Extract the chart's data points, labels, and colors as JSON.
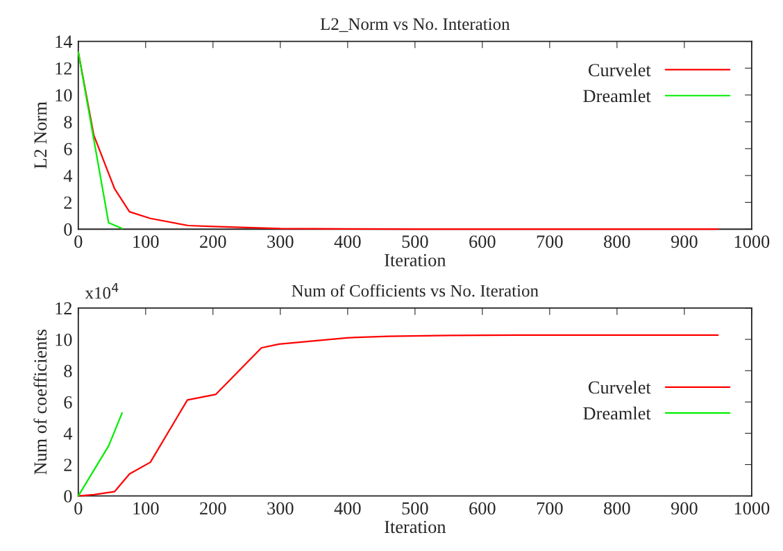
{
  "chart_data": [
    {
      "type": "line",
      "title": "L2_Norm vs No. Interation",
      "xlabel": "Iteration",
      "ylabel": "L2 Norm",
      "xlim": [
        0,
        1000
      ],
      "xticks": [
        0,
        100,
        200,
        300,
        400,
        500,
        600,
        700,
        800,
        900,
        1000
      ],
      "ylim": [
        0,
        14
      ],
      "yticks": [
        0,
        2,
        4,
        6,
        8,
        10,
        12,
        14
      ],
      "grid": false,
      "legend": "top right",
      "series": [
        {
          "name": "Curvelet",
          "color": "#ff0000",
          "x": [
            0,
            23,
            54,
            76,
            107,
            163,
            200,
            300,
            400,
            500,
            600,
            700,
            800,
            950
          ],
          "values": [
            13.2,
            7.0,
            3.0,
            1.3,
            0.8,
            0.27,
            0.2,
            0.05,
            0.02,
            0.01,
            0,
            0,
            0,
            0
          ]
        },
        {
          "name": "Dreamlet",
          "color": "#00ee00",
          "x": [
            0,
            45,
            65
          ],
          "values": [
            13.2,
            0.48,
            0.05
          ]
        }
      ]
    },
    {
      "type": "line",
      "title": "Num of Cofficients vs No. Iteration",
      "xlabel": "Iteration",
      "ylabel": "Num of coefficients",
      "annotations": [
        "x10$^{4}$"
      ],
      "xlim": [
        0,
        1000
      ],
      "xticks": [
        0,
        100,
        200,
        300,
        400,
        500,
        600,
        700,
        800,
        900,
        1000
      ],
      "ylim": [
        0,
        12
      ],
      "yticks": [
        0,
        2,
        4,
        6,
        8,
        10,
        12
      ],
      "grid": false,
      "legend": "right",
      "series": [
        {
          "name": "Curvelet",
          "color": "#ff0000",
          "x": [
            0,
            23,
            54,
            76,
            107,
            162,
            204,
            272,
            298,
            399,
            460,
            550,
            650,
            800,
            950
          ],
          "values": [
            0,
            0.08,
            0.28,
            1.4,
            2.15,
            6.13,
            6.48,
            9.46,
            9.7,
            10.1,
            10.2,
            10.25,
            10.27,
            10.27,
            10.27
          ]
        },
        {
          "name": "Dreamlet",
          "color": "#00ee00",
          "x": [
            0,
            45,
            65
          ],
          "values": [
            0,
            3.19,
            5.3
          ]
        }
      ]
    }
  ]
}
